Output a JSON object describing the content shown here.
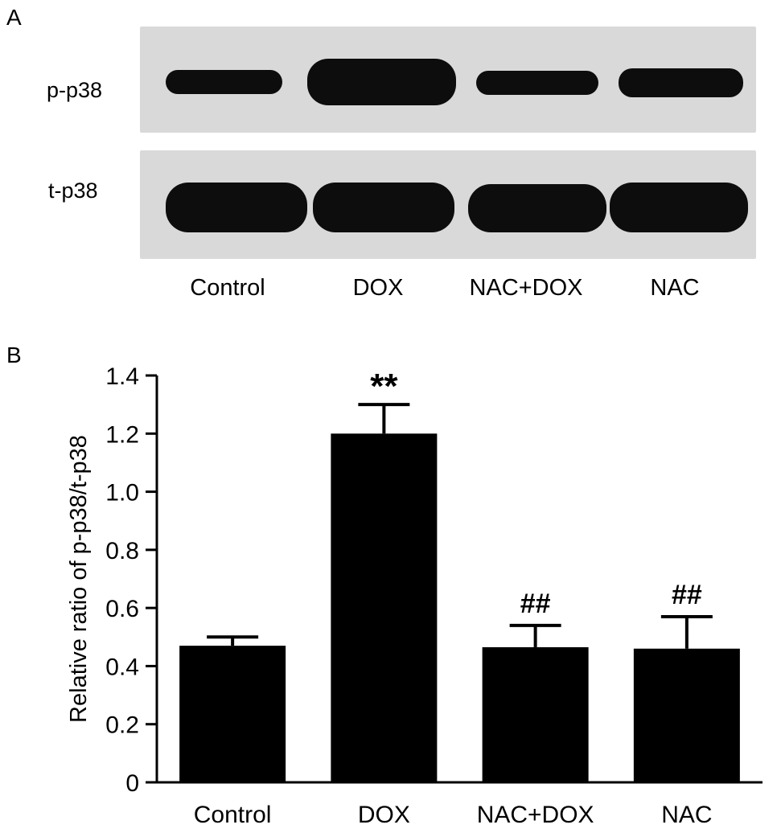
{
  "panel_a": {
    "letter": "A",
    "rows": [
      {
        "label": "p-p38",
        "band_intensity": [
          0.55,
          0.95,
          0.5,
          0.62
        ]
      },
      {
        "label": "t-p38",
        "band_intensity": [
          0.9,
          0.9,
          0.9,
          0.92
        ]
      }
    ],
    "lanes": [
      "Control",
      "DOX",
      "NAC+DOX",
      "NAC"
    ]
  },
  "panel_b": {
    "letter": "B"
  },
  "chart_data": {
    "type": "bar",
    "categories": [
      "Control",
      "DOX",
      "NAC+DOX",
      "NAC"
    ],
    "values": [
      0.47,
      1.2,
      0.465,
      0.46
    ],
    "errors": [
      0.03,
      0.1,
      0.075,
      0.11
    ],
    "annotations": [
      "",
      "**",
      "##",
      "##"
    ],
    "title": "",
    "xlabel": "",
    "ylabel": "Relative ratio of p-p38/t-p38",
    "ylim": [
      0,
      1.4
    ],
    "yticks": [
      "0",
      "0.2",
      "0.4",
      "0.6",
      "0.8",
      "1.0",
      "1.2",
      "1.4"
    ],
    "bar_color": "#000000",
    "grid": false,
    "legend": "none"
  }
}
